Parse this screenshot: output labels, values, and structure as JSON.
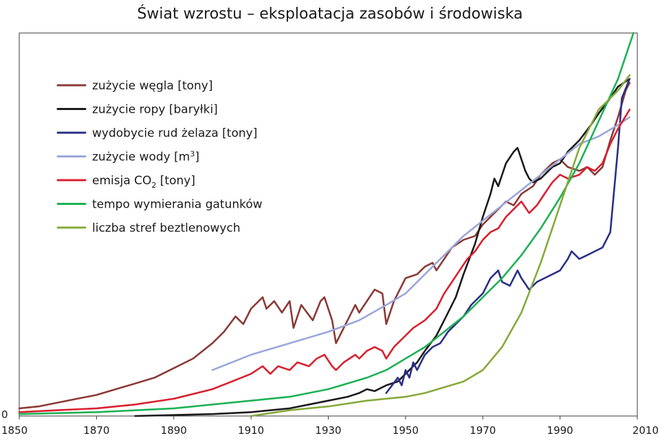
{
  "chart_data": {
    "type": "line",
    "title": "Świat wzrostu –  eksploatacja zasobów i środowiska",
    "xlabel": "",
    "ylabel": "",
    "xlim": [
      1850,
      2010
    ],
    "ylim": [
      0,
      100
    ],
    "xticks": [
      "1850",
      "1870",
      "1890",
      "1910",
      "1930",
      "1950",
      "1970",
      "1990",
      "2010"
    ],
    "xtick_values": [
      1850,
      1870,
      1890,
      1910,
      1930,
      1950,
      1970,
      1990,
      2010
    ],
    "y_zero_label": "0",
    "legend_position": "top-left",
    "series": [
      {
        "name": "zużycie węgla [tony]",
        "legend_prefix": "zużycie węgla [tony]",
        "legend_sub": "",
        "legend_sup": "",
        "legend_suffix": "",
        "color": "#8b3a36",
        "points": [
          [
            1850,
            2
          ],
          [
            1855,
            2.5
          ],
          [
            1860,
            3.5
          ],
          [
            1865,
            4.5
          ],
          [
            1870,
            5.5
          ],
          [
            1875,
            7
          ],
          [
            1880,
            8.5
          ],
          [
            1885,
            10
          ],
          [
            1890,
            12.5
          ],
          [
            1895,
            15
          ],
          [
            1900,
            19
          ],
          [
            1903,
            22
          ],
          [
            1906,
            26
          ],
          [
            1908,
            24
          ],
          [
            1910,
            28
          ],
          [
            1913,
            31
          ],
          [
            1914,
            28
          ],
          [
            1916,
            30
          ],
          [
            1918,
            27
          ],
          [
            1920,
            30
          ],
          [
            1921,
            23
          ],
          [
            1923,
            29
          ],
          [
            1926,
            25
          ],
          [
            1928,
            30
          ],
          [
            1929,
            31
          ],
          [
            1931,
            25
          ],
          [
            1932,
            19
          ],
          [
            1934,
            23
          ],
          [
            1937,
            29
          ],
          [
            1938,
            27
          ],
          [
            1940,
            30
          ],
          [
            1942,
            33
          ],
          [
            1944,
            32
          ],
          [
            1945,
            24
          ],
          [
            1947,
            30
          ],
          [
            1950,
            36
          ],
          [
            1953,
            37
          ],
          [
            1955,
            39
          ],
          [
            1957,
            40
          ],
          [
            1958,
            38
          ],
          [
            1960,
            41
          ],
          [
            1962,
            44
          ],
          [
            1965,
            46
          ],
          [
            1968,
            47
          ],
          [
            1970,
            50
          ],
          [
            1972,
            52
          ],
          [
            1974,
            54
          ],
          [
            1976,
            56
          ],
          [
            1978,
            55
          ],
          [
            1980,
            58
          ],
          [
            1983,
            60
          ],
          [
            1985,
            63
          ],
          [
            1988,
            66
          ],
          [
            1990,
            67
          ],
          [
            1992,
            65
          ],
          [
            1995,
            64
          ],
          [
            1997,
            65
          ],
          [
            1999,
            63
          ],
          [
            2001,
            65
          ],
          [
            2003,
            72
          ],
          [
            2005,
            78
          ],
          [
            2007,
            85
          ],
          [
            2008,
            87
          ]
        ]
      },
      {
        "name": "zużycie ropy [baryłki]",
        "legend_prefix": "zużycie ropy [baryłki]",
        "legend_sub": "",
        "legend_sup": "",
        "legend_suffix": "",
        "color": "#1a1a1a",
        "points": [
          [
            1880,
            0
          ],
          [
            1900,
            0.5
          ],
          [
            1910,
            1
          ],
          [
            1920,
            2
          ],
          [
            1925,
            3
          ],
          [
            1930,
            4
          ],
          [
            1935,
            5
          ],
          [
            1938,
            6
          ],
          [
            1940,
            7
          ],
          [
            1942,
            6.5
          ],
          [
            1945,
            8
          ],
          [
            1948,
            9
          ],
          [
            1950,
            11
          ],
          [
            1953,
            14
          ],
          [
            1955,
            17
          ],
          [
            1958,
            21
          ],
          [
            1960,
            25
          ],
          [
            1963,
            31
          ],
          [
            1965,
            37
          ],
          [
            1968,
            45
          ],
          [
            1970,
            52
          ],
          [
            1972,
            58
          ],
          [
            1973,
            62
          ],
          [
            1974,
            60
          ],
          [
            1976,
            66
          ],
          [
            1978,
            69
          ],
          [
            1979,
            70
          ],
          [
            1981,
            64
          ],
          [
            1982,
            62
          ],
          [
            1983,
            61
          ],
          [
            1985,
            62
          ],
          [
            1986,
            63
          ],
          [
            1988,
            65
          ],
          [
            1990,
            66
          ],
          [
            1992,
            69
          ],
          [
            1995,
            72
          ],
          [
            1998,
            76
          ],
          [
            2000,
            79
          ],
          [
            2003,
            83
          ],
          [
            2005,
            86
          ],
          [
            2008,
            88
          ]
        ]
      },
      {
        "name": "wydobycie rud żelaza [tony]",
        "legend_prefix": "wydobycie rud żelaza [tony]",
        "legend_sub": "",
        "legend_sup": "",
        "legend_suffix": "",
        "color": "#2b2f87",
        "points": [
          [
            1945,
            6
          ],
          [
            1948,
            10
          ],
          [
            1949,
            8
          ],
          [
            1950,
            12
          ],
          [
            1951,
            10
          ],
          [
            1952,
            14
          ],
          [
            1953,
            12
          ],
          [
            1955,
            16
          ],
          [
            1957,
            18
          ],
          [
            1959,
            19
          ],
          [
            1961,
            22
          ],
          [
            1963,
            24
          ],
          [
            1965,
            26
          ],
          [
            1967,
            29
          ],
          [
            1969,
            31
          ],
          [
            1970,
            32
          ],
          [
            1972,
            36
          ],
          [
            1974,
            38
          ],
          [
            1975,
            35
          ],
          [
            1977,
            34
          ],
          [
            1979,
            38
          ],
          [
            1980,
            36
          ],
          [
            1982,
            33
          ],
          [
            1984,
            35
          ],
          [
            1986,
            36
          ],
          [
            1988,
            37
          ],
          [
            1990,
            38
          ],
          [
            1992,
            41
          ],
          [
            1993,
            43
          ],
          [
            1995,
            41
          ],
          [
            1997,
            42
          ],
          [
            1999,
            43
          ],
          [
            2001,
            44
          ],
          [
            2003,
            48
          ],
          [
            2005,
            70
          ],
          [
            2006,
            83
          ],
          [
            2008,
            88
          ]
        ]
      },
      {
        "name": "zużycie wody [m3]",
        "legend_prefix": "zużycie wody [m",
        "legend_sub": "",
        "legend_sup": "3",
        "legend_suffix": "]",
        "color": "#9aa7db",
        "points": [
          [
            1900,
            12
          ],
          [
            1910,
            16
          ],
          [
            1920,
            19
          ],
          [
            1930,
            22
          ],
          [
            1938,
            25
          ],
          [
            1945,
            29
          ],
          [
            1950,
            32
          ],
          [
            1955,
            37
          ],
          [
            1960,
            42
          ],
          [
            1965,
            47
          ],
          [
            1970,
            51
          ],
          [
            1975,
            55
          ],
          [
            1980,
            59
          ],
          [
            1985,
            63
          ],
          [
            1990,
            67
          ],
          [
            1995,
            71
          ],
          [
            2000,
            73
          ],
          [
            2005,
            76
          ],
          [
            2008,
            78
          ]
        ]
      },
      {
        "name": "emisja CO2 [tony]",
        "legend_prefix": "emisja CO",
        "legend_sub": "2",
        "legend_sup": "",
        "legend_suffix": " [tony]",
        "color": "#d8202e",
        "points": [
          [
            1850,
            1
          ],
          [
            1860,
            1.5
          ],
          [
            1870,
            2
          ],
          [
            1880,
            3
          ],
          [
            1890,
            4.5
          ],
          [
            1900,
            7
          ],
          [
            1905,
            9
          ],
          [
            1910,
            11
          ],
          [
            1913,
            13
          ],
          [
            1915,
            11
          ],
          [
            1917,
            13
          ],
          [
            1920,
            12
          ],
          [
            1922,
            14
          ],
          [
            1925,
            13
          ],
          [
            1927,
            15
          ],
          [
            1929,
            16
          ],
          [
            1931,
            13
          ],
          [
            1932,
            12
          ],
          [
            1934,
            14
          ],
          [
            1937,
            16
          ],
          [
            1938,
            15
          ],
          [
            1940,
            17
          ],
          [
            1942,
            18
          ],
          [
            1944,
            17
          ],
          [
            1945,
            15
          ],
          [
            1947,
            18
          ],
          [
            1950,
            21
          ],
          [
            1952,
            23
          ],
          [
            1955,
            25
          ],
          [
            1958,
            28
          ],
          [
            1960,
            32
          ],
          [
            1962,
            35
          ],
          [
            1964,
            38
          ],
          [
            1966,
            41
          ],
          [
            1968,
            43
          ],
          [
            1970,
            46
          ],
          [
            1972,
            48
          ],
          [
            1974,
            49
          ],
          [
            1976,
            52
          ],
          [
            1978,
            54
          ],
          [
            1980,
            56
          ],
          [
            1982,
            53
          ],
          [
            1984,
            55
          ],
          [
            1986,
            58
          ],
          [
            1988,
            61
          ],
          [
            1990,
            63
          ],
          [
            1992,
            62
          ],
          [
            1995,
            63
          ],
          [
            1997,
            65
          ],
          [
            1999,
            64
          ],
          [
            2001,
            66
          ],
          [
            2003,
            71
          ],
          [
            2005,
            75
          ],
          [
            2008,
            80
          ]
        ]
      },
      {
        "name": "tempo wymierania gatunków",
        "legend_prefix": "tempo wymierania gatunków",
        "legend_sub": "",
        "legend_sup": "",
        "legend_suffix": "",
        "color": "#1db154",
        "points": [
          [
            1850,
            0.5
          ],
          [
            1870,
            1
          ],
          [
            1890,
            2
          ],
          [
            1900,
            3
          ],
          [
            1910,
            4
          ],
          [
            1920,
            5
          ],
          [
            1930,
            7
          ],
          [
            1940,
            10
          ],
          [
            1945,
            12
          ],
          [
            1950,
            15
          ],
          [
            1955,
            18
          ],
          [
            1960,
            22
          ],
          [
            1965,
            26
          ],
          [
            1970,
            31
          ],
          [
            1975,
            36
          ],
          [
            1980,
            42
          ],
          [
            1985,
            49
          ],
          [
            1990,
            57
          ],
          [
            1995,
            66
          ],
          [
            2000,
            77
          ],
          [
            2005,
            88
          ],
          [
            2009,
            100
          ]
        ]
      },
      {
        "name": "liczba stref beztlenowych",
        "legend_prefix": "liczba stref beztlenowych",
        "legend_sub": "",
        "legend_sup": "",
        "legend_suffix": "",
        "color": "#86a93a",
        "points": [
          [
            1910,
            0
          ],
          [
            1920,
            1.5
          ],
          [
            1930,
            2.5
          ],
          [
            1940,
            4
          ],
          [
            1950,
            5
          ],
          [
            1955,
            6
          ],
          [
            1960,
            7.5
          ],
          [
            1965,
            9
          ],
          [
            1970,
            12
          ],
          [
            1975,
            18
          ],
          [
            1980,
            27
          ],
          [
            1985,
            40
          ],
          [
            1990,
            55
          ],
          [
            1995,
            70
          ],
          [
            2000,
            80
          ],
          [
            2005,
            85
          ],
          [
            2008,
            89
          ]
        ]
      }
    ]
  }
}
